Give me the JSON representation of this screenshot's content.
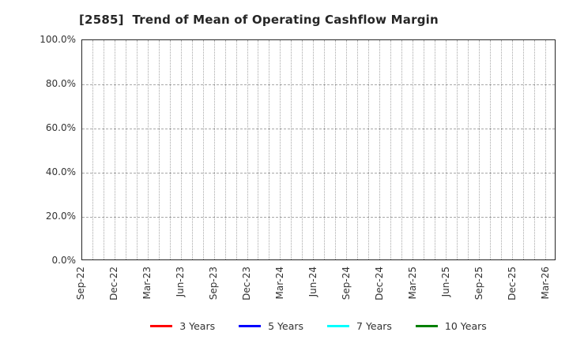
{
  "title": "[2585]  Trend of Mean of Operating Cashflow Margin",
  "chart_data": {
    "type": "line",
    "title": "[2585]  Trend of Mean of Operating Cashflow Margin",
    "xlabel": "",
    "ylabel": "",
    "ylim": [
      0,
      100
    ],
    "y_tick_labels": [
      "100.0%",
      "80.0%",
      "60.0%",
      "40.0%",
      "20.0%",
      "0.0%"
    ],
    "x_tick_labels": [
      "Sep-22",
      "Dec-22",
      "Mar-23",
      "Jun-23",
      "Sep-23",
      "Dec-23",
      "Mar-24",
      "Jun-24",
      "Sep-24",
      "Dec-24",
      "Mar-25",
      "Jun-25",
      "Sep-25",
      "Dec-25",
      "Mar-26"
    ],
    "months_per_tick": 3,
    "grid": true,
    "grid_style": {
      "vertical": "dotted",
      "horizontal": "dashed",
      "color": "#a8a8a8"
    },
    "legend_position": "bottom",
    "series": [
      {
        "name": "3 Years",
        "color": "#ff0000",
        "values": []
      },
      {
        "name": "5 Years",
        "color": "#0000ff",
        "values": []
      },
      {
        "name": "7 Years",
        "color": "#00ffff",
        "values": []
      },
      {
        "name": "10 Years",
        "color": "#008000",
        "values": []
      }
    ]
  },
  "colors": {
    "frame": "#262626",
    "tick_text": "#333333",
    "title_text": "#262626",
    "background": "#ffffff"
  }
}
